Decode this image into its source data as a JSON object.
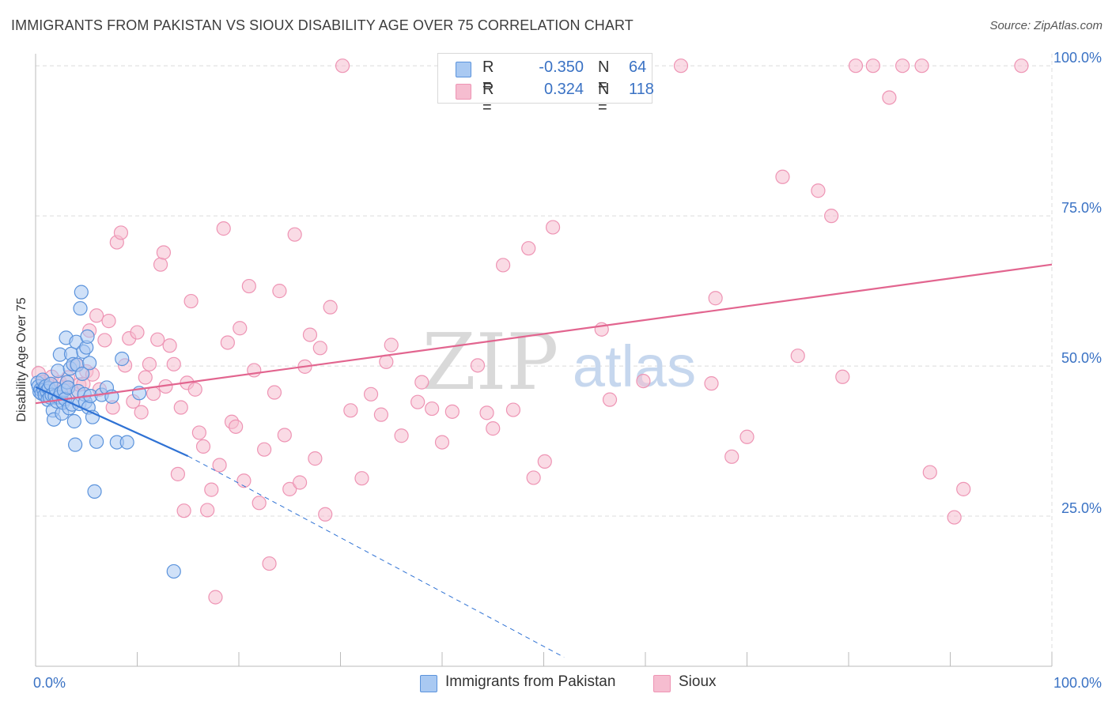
{
  "header": {
    "title": "IMMIGRANTS FROM PAKISTAN VS SIOUX DISABILITY AGE OVER 75 CORRELATION CHART",
    "source": "Source: ZipAtlas.com"
  },
  "watermark": {
    "zip": "ZIP",
    "atlas": "atlas"
  },
  "colors": {
    "pakistan_fill": "#a9c9f2",
    "pakistan_stroke": "#5b93dc",
    "pakistan_line": "#2f72d4",
    "sioux_fill": "#f6bdd0",
    "sioux_stroke": "#ee94b4",
    "sioux_line": "#e2658f",
    "value_text": "#3a72c4",
    "grid": "#dcdcdc"
  },
  "legend": {
    "r_label": "R =",
    "n_label": "N =",
    "rows": [
      {
        "r": "-0.350",
        "n": "64"
      },
      {
        "r": "0.324",
        "n": "118"
      }
    ]
  },
  "bottom_legend": {
    "pakistan": "Immigrants from Pakistan",
    "sioux": "Sioux"
  },
  "chart_data": {
    "type": "scatter",
    "title": "IMMIGRANTS FROM PAKISTAN VS SIOUX DISABILITY AGE OVER 75 CORRELATION CHART",
    "xlabel": "",
    "ylabel": "Disability Age Over 75",
    "xlim": [
      0,
      100
    ],
    "ylim": [
      0,
      102
    ],
    "x_tick_labels": [
      "0.0%",
      "100.0%"
    ],
    "y_tick_labels": [
      "25.0%",
      "50.0%",
      "75.0%",
      "100.0%"
    ],
    "y_ticks": [
      25,
      50,
      75,
      100
    ],
    "grid": true,
    "legend_position": "top-center",
    "series": [
      {
        "name": "Immigrants from Pakistan",
        "r": -0.35,
        "n": 64,
        "trend": {
          "x": [
            0,
            15
          ],
          "y": [
            46.5,
            35.0
          ],
          "dashed_to": [
            52,
            1.5
          ]
        },
        "points": [
          [
            0.2,
            47.2
          ],
          [
            0.3,
            46.6
          ],
          [
            0.4,
            45.7
          ],
          [
            0.5,
            46.1
          ],
          [
            0.6,
            45.4
          ],
          [
            0.7,
            47.7
          ],
          [
            0.8,
            46.0
          ],
          [
            0.9,
            45.2
          ],
          [
            1.0,
            46.6
          ],
          [
            1.1,
            45.8
          ],
          [
            1.2,
            44.4
          ],
          [
            1.3,
            46.3
          ],
          [
            1.4,
            44.8
          ],
          [
            1.5,
            47.0
          ],
          [
            1.6,
            45.2
          ],
          [
            1.7,
            42.6
          ],
          [
            1.8,
            41.1
          ],
          [
            1.9,
            45.0
          ],
          [
            2.0,
            46.2
          ],
          [
            2.1,
            44.1
          ],
          [
            2.2,
            49.2
          ],
          [
            2.3,
            44.8
          ],
          [
            2.4,
            51.9
          ],
          [
            2.5,
            45.5
          ],
          [
            2.6,
            42.1
          ],
          [
            2.7,
            43.9
          ],
          [
            2.8,
            45.9
          ],
          [
            2.9,
            44.5
          ],
          [
            3.0,
            54.7
          ],
          [
            3.1,
            47.3
          ],
          [
            3.2,
            46.4
          ],
          [
            3.3,
            43.0
          ],
          [
            3.4,
            49.6
          ],
          [
            3.5,
            52.0
          ],
          [
            3.6,
            43.6
          ],
          [
            3.7,
            50.3
          ],
          [
            3.8,
            40.8
          ],
          [
            3.9,
            36.9
          ],
          [
            4.0,
            54.0
          ],
          [
            4.1,
            50.2
          ],
          [
            4.2,
            45.8
          ],
          [
            4.3,
            43.7
          ],
          [
            4.4,
            59.6
          ],
          [
            4.5,
            62.3
          ],
          [
            4.6,
            48.7
          ],
          [
            4.7,
            52.4
          ],
          [
            4.8,
            45.3
          ],
          [
            4.9,
            44.0
          ],
          [
            5.0,
            53.1
          ],
          [
            5.1,
            54.9
          ],
          [
            5.2,
            43.1
          ],
          [
            5.3,
            50.5
          ],
          [
            5.4,
            45.0
          ],
          [
            5.6,
            41.5
          ],
          [
            5.8,
            29.1
          ],
          [
            6.0,
            37.4
          ],
          [
            6.5,
            45.2
          ],
          [
            7.0,
            46.4
          ],
          [
            7.5,
            44.9
          ],
          [
            8.0,
            37.3
          ],
          [
            8.5,
            51.2
          ],
          [
            9.0,
            37.3
          ],
          [
            10.2,
            45.5
          ],
          [
            13.6,
            15.8
          ]
        ]
      },
      {
        "name": "Sioux",
        "r": 0.324,
        "n": 118,
        "trend": {
          "x": [
            0,
            100
          ],
          "y": [
            43.8,
            66.9
          ]
        },
        "points": [
          [
            0.3,
            48.8
          ],
          [
            0.8,
            47.4
          ],
          [
            1.2,
            46.9
          ],
          [
            1.6,
            48.2
          ],
          [
            2.0,
            45.7
          ],
          [
            2.4,
            47.3
          ],
          [
            2.8,
            46.5
          ],
          [
            3.2,
            48.1
          ],
          [
            3.6,
            45.6
          ],
          [
            4.0,
            50.2
          ],
          [
            4.3,
            46.9
          ],
          [
            4.7,
            47.0
          ],
          [
            5.0,
            49.1
          ],
          [
            5.3,
            55.9
          ],
          [
            5.6,
            48.6
          ],
          [
            6.0,
            58.4
          ],
          [
            6.3,
            46.1
          ],
          [
            6.8,
            54.3
          ],
          [
            7.2,
            57.5
          ],
          [
            7.6,
            43.1
          ],
          [
            8.0,
            70.6
          ],
          [
            8.4,
            72.2
          ],
          [
            8.8,
            50.1
          ],
          [
            9.2,
            54.6
          ],
          [
            9.6,
            44.1
          ],
          [
            10.0,
            55.6
          ],
          [
            10.4,
            42.3
          ],
          [
            10.8,
            48.1
          ],
          [
            11.2,
            50.3
          ],
          [
            11.6,
            45.4
          ],
          [
            12.0,
            54.4
          ],
          [
            12.3,
            66.9
          ],
          [
            12.6,
            68.9
          ],
          [
            12.8,
            46.6
          ],
          [
            13.2,
            53.4
          ],
          [
            13.6,
            50.3
          ],
          [
            14.0,
            32.0
          ],
          [
            14.3,
            43.1
          ],
          [
            14.6,
            25.9
          ],
          [
            14.9,
            47.2
          ],
          [
            15.3,
            60.8
          ],
          [
            15.7,
            46.1
          ],
          [
            16.1,
            38.9
          ],
          [
            16.5,
            36.6
          ],
          [
            16.9,
            26.0
          ],
          [
            17.3,
            29.4
          ],
          [
            17.7,
            11.5
          ],
          [
            18.1,
            33.5
          ],
          [
            18.5,
            72.9
          ],
          [
            18.9,
            53.9
          ],
          [
            19.3,
            40.7
          ],
          [
            19.7,
            39.9
          ],
          [
            20.1,
            56.3
          ],
          [
            20.5,
            30.9
          ],
          [
            21.0,
            63.3
          ],
          [
            21.5,
            49.3
          ],
          [
            22.0,
            27.2
          ],
          [
            22.5,
            36.1
          ],
          [
            23.0,
            17.1
          ],
          [
            23.5,
            45.6
          ],
          [
            24.0,
            62.5
          ],
          [
            24.5,
            38.5
          ],
          [
            25.0,
            29.5
          ],
          [
            25.5,
            71.9
          ],
          [
            26.0,
            30.6
          ],
          [
            26.5,
            49.9
          ],
          [
            27.0,
            55.2
          ],
          [
            27.5,
            34.6
          ],
          [
            28.0,
            53.0
          ],
          [
            28.5,
            25.3
          ],
          [
            29.0,
            59.8
          ],
          [
            30.2,
            100.0
          ],
          [
            31.0,
            42.6
          ],
          [
            32.1,
            31.3
          ],
          [
            33.0,
            45.3
          ],
          [
            34.0,
            41.9
          ],
          [
            34.5,
            50.7
          ],
          [
            35.0,
            53.5
          ],
          [
            36.0,
            38.4
          ],
          [
            37.6,
            44.0
          ],
          [
            38.0,
            47.3
          ],
          [
            39.0,
            42.9
          ],
          [
            40.0,
            37.3
          ],
          [
            41.0,
            42.4
          ],
          [
            42.4,
            100.0
          ],
          [
            43.5,
            50.1
          ],
          [
            44.4,
            42.2
          ],
          [
            45.0,
            39.6
          ],
          [
            46.0,
            66.8
          ],
          [
            47.0,
            42.7
          ],
          [
            48.5,
            69.6
          ],
          [
            49.0,
            31.4
          ],
          [
            50.1,
            34.1
          ],
          [
            50.9,
            73.1
          ],
          [
            51.2,
            100.0
          ],
          [
            53.1,
            100.0
          ],
          [
            55.7,
            56.1
          ],
          [
            56.5,
            44.4
          ],
          [
            59.8,
            47.5
          ],
          [
            63.5,
            100.0
          ],
          [
            66.5,
            47.1
          ],
          [
            66.9,
            61.3
          ],
          [
            68.5,
            34.9
          ],
          [
            70.0,
            38.2
          ],
          [
            73.5,
            81.5
          ],
          [
            75.0,
            51.7
          ],
          [
            77.0,
            79.2
          ],
          [
            78.3,
            75.0
          ],
          [
            79.4,
            48.2
          ],
          [
            80.7,
            100.0
          ],
          [
            82.4,
            100.0
          ],
          [
            84.0,
            94.7
          ],
          [
            85.3,
            100.0
          ],
          [
            87.2,
            100.0
          ],
          [
            88.0,
            32.3
          ],
          [
            90.4,
            24.8
          ],
          [
            91.3,
            29.5
          ],
          [
            97.0,
            100.0
          ]
        ]
      }
    ]
  }
}
